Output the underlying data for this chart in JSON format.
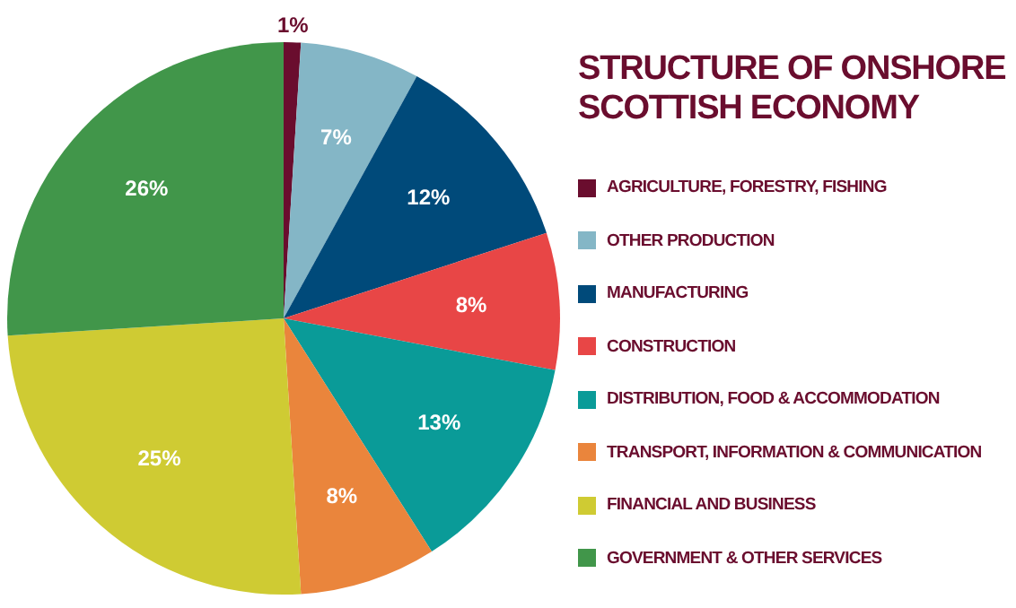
{
  "chart_data": {
    "type": "pie",
    "title": "STRUCTURE OF ONSHORE SCOTTISH ECONOMY",
    "categories": [
      "AGRICULTURE, FORESTRY, FISHING",
      "OTHER PRODUCTION",
      "MANUFACTURING",
      "CONSTRUCTION",
      "DISTRIBUTION, FOOD & ACCOMMODATION",
      "TRANSPORT, INFORMATION & COMMUNICATION",
      "FINANCIAL AND BUSINESS",
      "GOVERNMENT & OTHER SERVICES"
    ],
    "values": [
      1,
      7,
      12,
      8,
      13,
      8,
      25,
      26
    ],
    "colors": [
      "#6a0d2e",
      "#84b6c6",
      "#004a7a",
      "#e84646",
      "#0a9b98",
      "#ea853c",
      "#cfcb33",
      "#41964a"
    ],
    "value_labels": [
      "1%",
      "7%",
      "12%",
      "8%",
      "13%",
      "8%",
      "25%",
      "26%"
    ],
    "legend": "right"
  }
}
